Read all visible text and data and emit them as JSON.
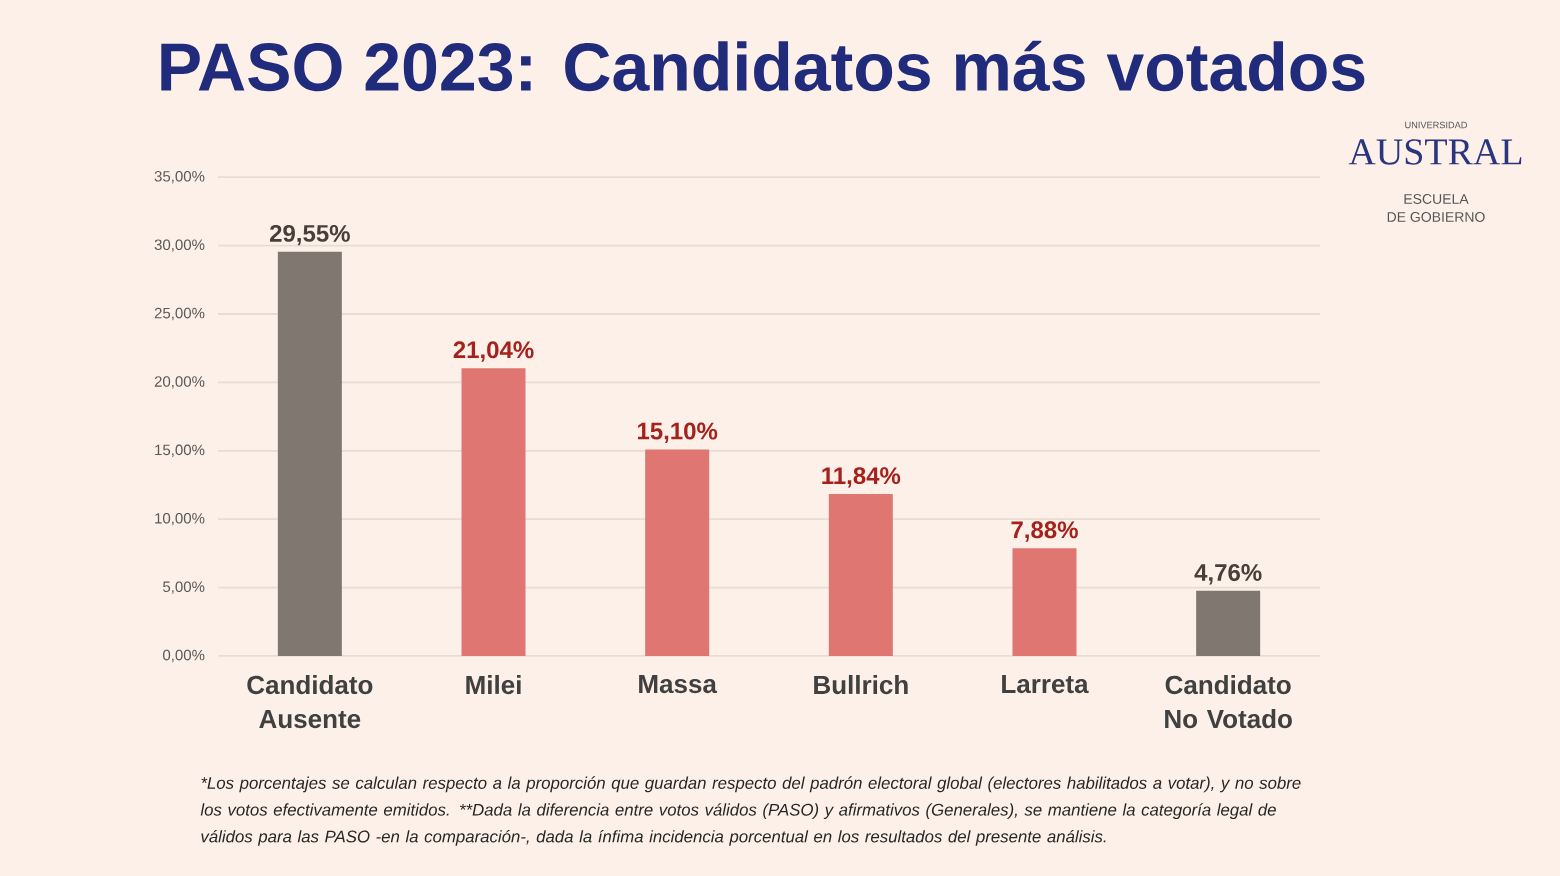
{
  "chart_data": {
    "type": "bar",
    "title": "PASO 2023: Candidatos más votados",
    "categories": [
      "Candidato Ausente",
      "Milei",
      "Massa",
      "Bullrich",
      "Larreta",
      "Candidato No Votado"
    ],
    "values": [
      29.55,
      21.04,
      15.1,
      11.84,
      7.88,
      4.76
    ],
    "colors": [
      "#7f7770",
      "#df7672",
      "#df7672",
      "#df7672",
      "#df7672",
      "#7f7770"
    ],
    "value_labels": [
      "29,55%",
      "21,04%",
      "15,10%",
      "11,84%",
      "7,88%",
      "4,76%"
    ],
    "ylim": [
      0,
      35
    ],
    "yticks": [
      {
        "value": 0,
        "label": "0,00%"
      },
      {
        "value": 5,
        "label": "5,00%"
      },
      {
        "value": 10,
        "label": "10,00%"
      },
      {
        "value": 15,
        "label": "15,00%"
      },
      {
        "value": 20,
        "label": "20,00%"
      },
      {
        "value": 25,
        "label": "25,00%"
      },
      {
        "value": 30,
        "label": "30,00%"
      },
      {
        "value": 35,
        "label": "35,00%"
      }
    ],
    "grid": "y",
    "annotations": [
      "*Los porcentajes se calculan respecto a la proporción que guardan respecto del padrón electoral global (electores habilitados a votar), y no sobre los votos efectivamente emitidos. **Dada la diferencia entre votos válidos (PASO) y afirmativos (Generales), se mantiene la categoría legal de válidos para las PASO -en la comparación-, dada la ínfima incidencia porcentual en los resultados del presente análisis.",
      "UNIVERSIDAD",
      "AUSTRAL",
      "ESCUELA",
      "DE GOBIERNO"
    ]
  }
}
